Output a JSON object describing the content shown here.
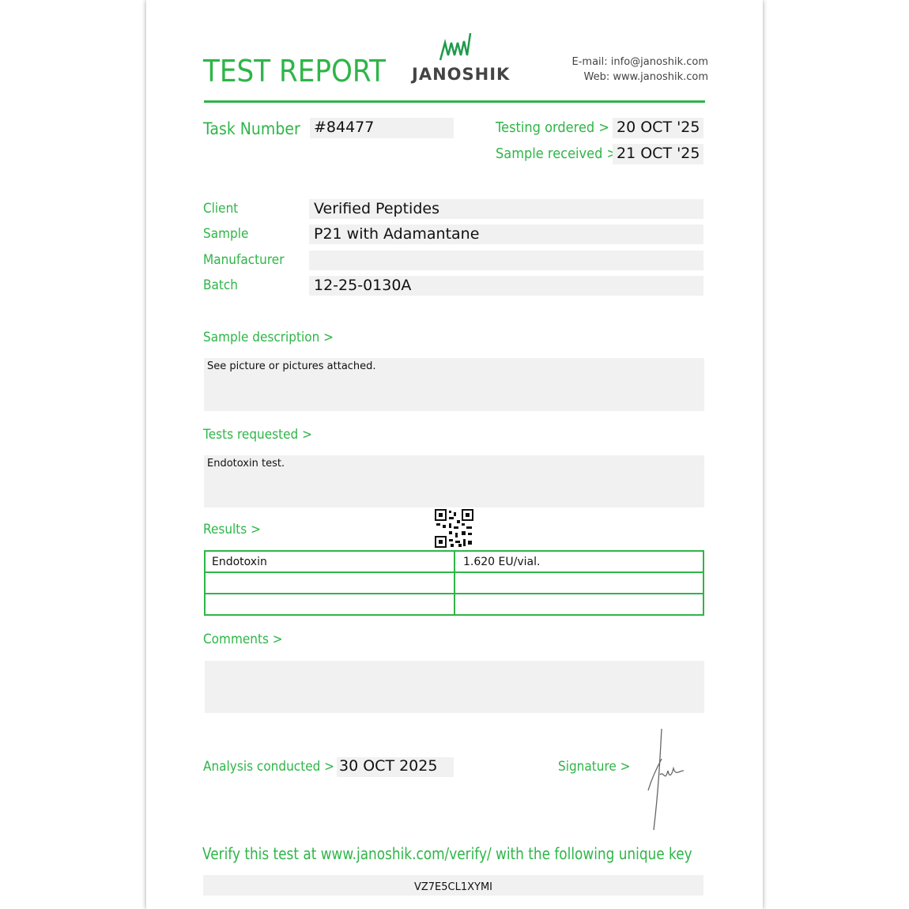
{
  "header": {
    "title": "TEST REPORT",
    "logo_text": "JANOSHIK",
    "email": "E-mail: info@janoshik.com",
    "web": "Web: www.janoshik.com"
  },
  "task": {
    "label": "Task Number",
    "value": "#84477"
  },
  "dates": {
    "ordered_label": "Testing ordered  >",
    "ordered": "20 OCT '25",
    "received_label": "Sample received >",
    "received": "21 OCT '25"
  },
  "info": [
    {
      "label": "Client",
      "value": "Verified Peptides"
    },
    {
      "label": "Sample",
      "value": "P21 with Adamantane"
    },
    {
      "label": "Manufacturer",
      "value": ""
    },
    {
      "label": "Batch",
      "value": "12-25-0130A"
    }
  ],
  "description": {
    "label": "Sample description >",
    "value": "See picture or pictures attached."
  },
  "tests": {
    "label": "Tests requested >",
    "value": "Endotoxin test."
  },
  "results": {
    "label": "Results >",
    "rows": [
      [
        "Endotoxin",
        "1.620 EU/vial."
      ],
      [
        "",
        ""
      ],
      [
        "",
        ""
      ]
    ]
  },
  "comments": {
    "label": "Comments >",
    "value": ""
  },
  "analysis": {
    "label": "Analysis conducted >",
    "value": "30 OCT 2025"
  },
  "signature": {
    "label": "Signature >"
  },
  "verify": {
    "text": "Verify this test at www.janoshik.com/verify/ with the following unique key",
    "key": "VZ7E5CL1XYMI"
  },
  "colors": {
    "accent": "#2fb548"
  }
}
